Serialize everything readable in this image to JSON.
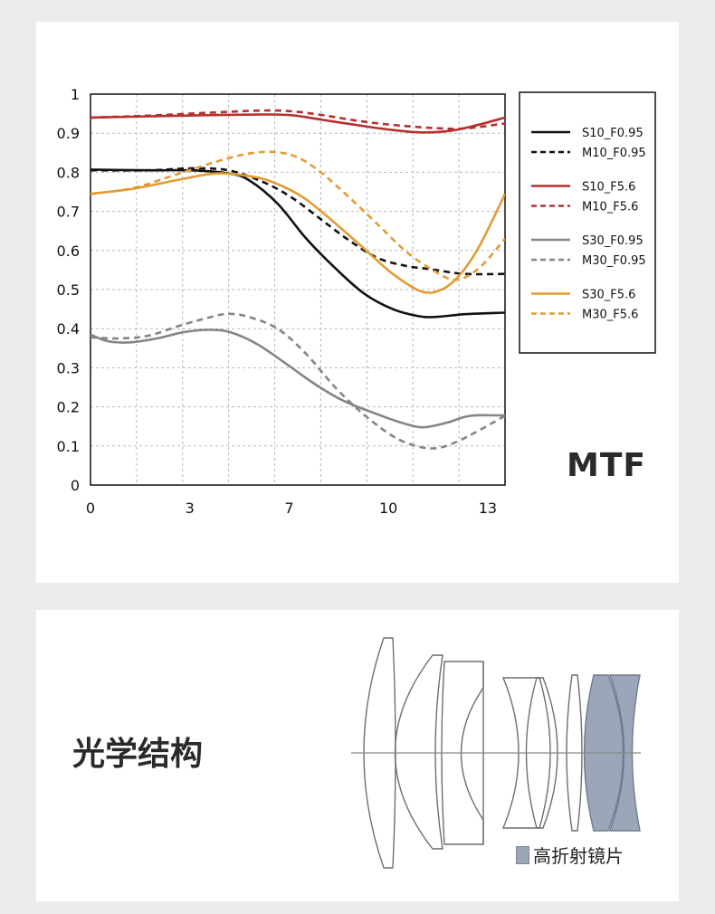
{
  "chart_data": {
    "type": "line",
    "title": "MTF",
    "xlabel": "",
    "ylabel": "",
    "xlim": [
      0,
      14.4
    ],
    "ylim": [
      0,
      1
    ],
    "x_ticks": [
      {
        "value": 0,
        "label": "0"
      },
      {
        "value": 3.45,
        "label": "3"
      },
      {
        "value": 6.9,
        "label": "7"
      },
      {
        "value": 10.35,
        "label": "10"
      },
      {
        "value": 13.8,
        "label": "13"
      }
    ],
    "y_ticks": [
      {
        "value": 0,
        "label": "0"
      },
      {
        "value": 0.1,
        "label": "0.1"
      },
      {
        "value": 0.2,
        "label": "0.2"
      },
      {
        "value": 0.3,
        "label": "0.3"
      },
      {
        "value": 0.4,
        "label": "0.4"
      },
      {
        "value": 0.5,
        "label": "0.5"
      },
      {
        "value": 0.6,
        "label": "0.6"
      },
      {
        "value": 0.7,
        "label": "0.7"
      },
      {
        "value": 0.8,
        "label": "0.8"
      },
      {
        "value": 0.9,
        "label": "0.9"
      },
      {
        "value": 1,
        "label": "1"
      }
    ],
    "grid": true,
    "legend_position": "right",
    "series": [
      {
        "name": "S10_F0.95",
        "color": "#111111",
        "dashed": false,
        "points": [
          [
            0,
            0.807
          ],
          [
            2,
            0.805
          ],
          [
            3.5,
            0.805
          ],
          [
            4.8,
            0.797
          ],
          [
            5.5,
            0.78
          ],
          [
            6.5,
            0.72
          ],
          [
            7.5,
            0.63
          ],
          [
            8.5,
            0.555
          ],
          [
            9.5,
            0.49
          ],
          [
            10.5,
            0.45
          ],
          [
            11.4,
            0.432
          ],
          [
            12,
            0.43
          ],
          [
            13,
            0.437
          ],
          [
            14.4,
            0.441
          ]
        ]
      },
      {
        "name": "M10_F0.95",
        "color": "#111111",
        "dashed": true,
        "points": [
          [
            0,
            0.805
          ],
          [
            2,
            0.805
          ],
          [
            3.5,
            0.81
          ],
          [
            4.8,
            0.805
          ],
          [
            6,
            0.775
          ],
          [
            7,
            0.735
          ],
          [
            8,
            0.68
          ],
          [
            9,
            0.625
          ],
          [
            10,
            0.58
          ],
          [
            11,
            0.56
          ],
          [
            11.5,
            0.555
          ],
          [
            12,
            0.55
          ],
          [
            13,
            0.54
          ],
          [
            14.4,
            0.54
          ]
        ]
      },
      {
        "name": "S10_F5.6",
        "color": "#b3312f",
        "dashed": false,
        "points": [
          [
            0,
            0.94
          ],
          [
            2,
            0.943
          ],
          [
            4,
            0.946
          ],
          [
            6,
            0.948
          ],
          [
            7,
            0.946
          ],
          [
            8,
            0.935
          ],
          [
            9.5,
            0.918
          ],
          [
            10.5,
            0.908
          ],
          [
            11.5,
            0.902
          ],
          [
            12.5,
            0.906
          ],
          [
            13.5,
            0.922
          ],
          [
            14.4,
            0.94
          ]
        ]
      },
      {
        "name": "M10_F5.6",
        "color": "#b3312f",
        "dashed": true,
        "points": [
          [
            0,
            0.94
          ],
          [
            2,
            0.945
          ],
          [
            4,
            0.952
          ],
          [
            6,
            0.958
          ],
          [
            7,
            0.956
          ],
          [
            8,
            0.947
          ],
          [
            9,
            0.935
          ],
          [
            10,
            0.925
          ],
          [
            11,
            0.918
          ],
          [
            12,
            0.913
          ],
          [
            13,
            0.912
          ],
          [
            14.4,
            0.925
          ]
        ]
      },
      {
        "name": "S30_F0.95",
        "color": "#858585",
        "dashed": false,
        "points": [
          [
            0,
            0.385
          ],
          [
            0.6,
            0.368
          ],
          [
            1.4,
            0.365
          ],
          [
            2.3,
            0.375
          ],
          [
            3.3,
            0.392
          ],
          [
            4.2,
            0.397
          ],
          [
            4.9,
            0.39
          ],
          [
            5.8,
            0.36
          ],
          [
            6.8,
            0.31
          ],
          [
            7.8,
            0.258
          ],
          [
            8.8,
            0.215
          ],
          [
            10,
            0.18
          ],
          [
            11,
            0.155
          ],
          [
            11.6,
            0.148
          ],
          [
            12.4,
            0.16
          ],
          [
            13.2,
            0.177
          ],
          [
            14.4,
            0.178
          ]
        ]
      },
      {
        "name": "M30_F0.95",
        "color": "#858585",
        "dashed": true,
        "points": [
          [
            0,
            0.378
          ],
          [
            1,
            0.375
          ],
          [
            2,
            0.382
          ],
          [
            3.2,
            0.41
          ],
          [
            4.2,
            0.43
          ],
          [
            4.8,
            0.438
          ],
          [
            5.5,
            0.43
          ],
          [
            6.5,
            0.4
          ],
          [
            7.5,
            0.335
          ],
          [
            8.5,
            0.25
          ],
          [
            9.5,
            0.18
          ],
          [
            10.5,
            0.125
          ],
          [
            11.3,
            0.1
          ],
          [
            12,
            0.094
          ],
          [
            12.7,
            0.11
          ],
          [
            13.5,
            0.14
          ],
          [
            14.4,
            0.177
          ]
        ]
      },
      {
        "name": "S30_F5.6",
        "color": "#e29b33",
        "dashed": false,
        "points": [
          [
            0,
            0.745
          ],
          [
            1.5,
            0.758
          ],
          [
            3,
            0.78
          ],
          [
            4.2,
            0.796
          ],
          [
            5,
            0.795
          ],
          [
            6,
            0.783
          ],
          [
            6.8,
            0.76
          ],
          [
            7.5,
            0.73
          ],
          [
            8.5,
            0.67
          ],
          [
            9.5,
            0.605
          ],
          [
            10.5,
            0.54
          ],
          [
            11.5,
            0.495
          ],
          [
            12.2,
            0.5
          ],
          [
            12.8,
            0.535
          ],
          [
            13.5,
            0.61
          ],
          [
            14.4,
            0.745
          ]
        ]
      },
      {
        "name": "M30_F5.6",
        "color": "#e29b33",
        "dashed": true,
        "points": [
          [
            0,
            0.745
          ],
          [
            1.5,
            0.76
          ],
          [
            3,
            0.795
          ],
          [
            4.5,
            0.83
          ],
          [
            5.5,
            0.848
          ],
          [
            6.4,
            0.852
          ],
          [
            7.2,
            0.838
          ],
          [
            8,
            0.8
          ],
          [
            9,
            0.735
          ],
          [
            10,
            0.665
          ],
          [
            11,
            0.595
          ],
          [
            12,
            0.545
          ],
          [
            12.7,
            0.525
          ],
          [
            13.5,
            0.555
          ],
          [
            14.4,
            0.63
          ]
        ]
      }
    ]
  },
  "lens": {
    "title": "光学结构",
    "legend_label": "高折射镜片",
    "highlight_color": "#9ba7b8"
  },
  "mtf_label": "MTF"
}
